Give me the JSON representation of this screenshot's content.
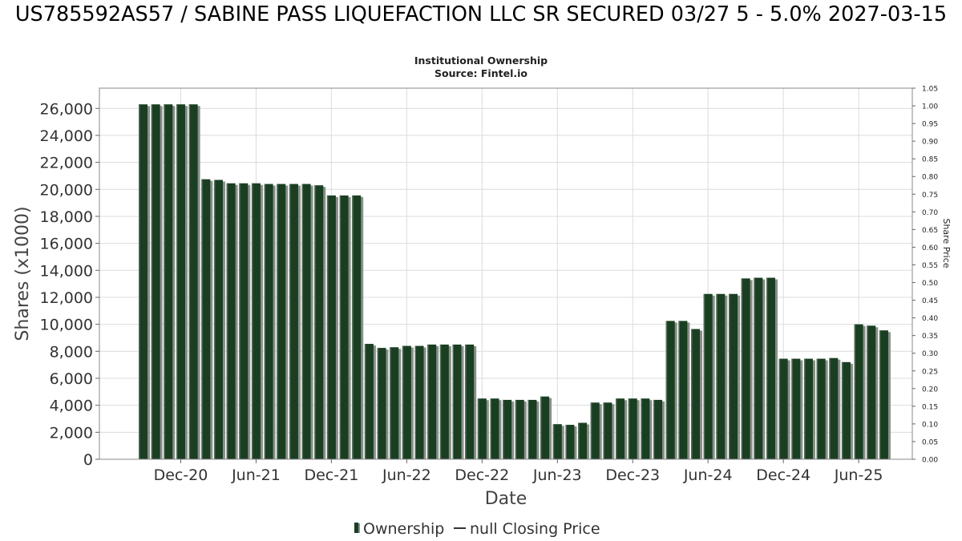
{
  "header": {
    "title": "US785592AS57 / SABINE PASS LIQUEFACTION LLC SR SECURED 03/27 5 - 5.0% 2027-03-15",
    "subtitle_line1": "Institutional Ownership",
    "subtitle_line2": "Source: Fintel.io"
  },
  "colors": {
    "bar": "#1a3e22",
    "bar_shadow": "#8a8f8a",
    "grid": "#dcdcdc",
    "plot_border": "#888888"
  },
  "chart_data": {
    "type": "bar",
    "xlabel": "Date",
    "ylabel": "Shares (x1000)",
    "y2label": "Share Price",
    "ylim": [
      0,
      27500
    ],
    "y2lim": [
      0,
      1.05
    ],
    "yticks": [
      "0",
      "2,000",
      "4,000",
      "6,000",
      "8,000",
      "10,000",
      "12,000",
      "14,000",
      "16,000",
      "18,000",
      "20,000",
      "22,000",
      "24,000",
      "26,000"
    ],
    "y2ticks": [
      "0.00",
      "0.05",
      "0.10",
      "0.15",
      "0.20",
      "0.25",
      "0.30",
      "0.35",
      "0.40",
      "0.45",
      "0.50",
      "0.55",
      "0.60",
      "0.65",
      "0.70",
      "0.75",
      "0.80",
      "0.85",
      "0.90",
      "0.95",
      "1.00",
      "1.05"
    ],
    "xticks": [
      {
        "label": "Dec-20",
        "index": 3
      },
      {
        "label": "Jun-21",
        "index": 9
      },
      {
        "label": "Dec-21",
        "index": 15
      },
      {
        "label": "Jun-22",
        "index": 21
      },
      {
        "label": "Dec-22",
        "index": 27
      },
      {
        "label": "Jun-23",
        "index": 33
      },
      {
        "label": "Dec-23",
        "index": 39
      },
      {
        "label": "Jun-24",
        "index": 45
      },
      {
        "label": "Dec-24",
        "index": 51
      },
      {
        "label": "Jun-25",
        "index": 57
      }
    ],
    "grid": true,
    "legend_position": "bottom-center",
    "series": [
      {
        "name": "Ownership",
        "values": [
          26300,
          26300,
          26300,
          26300,
          26300,
          20750,
          20700,
          20450,
          20450,
          20450,
          20400,
          20400,
          20400,
          20400,
          20300,
          19550,
          19550,
          19550,
          8550,
          8250,
          8300,
          8400,
          8400,
          8500,
          8500,
          8500,
          8500,
          4500,
          4500,
          4400,
          4400,
          4400,
          4650,
          2600,
          2550,
          2700,
          4200,
          4200,
          4500,
          4500,
          4500,
          4400,
          10250,
          10250,
          9650,
          12250,
          12250,
          12250,
          13400,
          13450,
          13450,
          7450,
          7450,
          7450,
          7450,
          7500,
          7200,
          10000,
          9900,
          9550
        ]
      },
      {
        "name": "null Closing Price",
        "values": []
      }
    ]
  }
}
